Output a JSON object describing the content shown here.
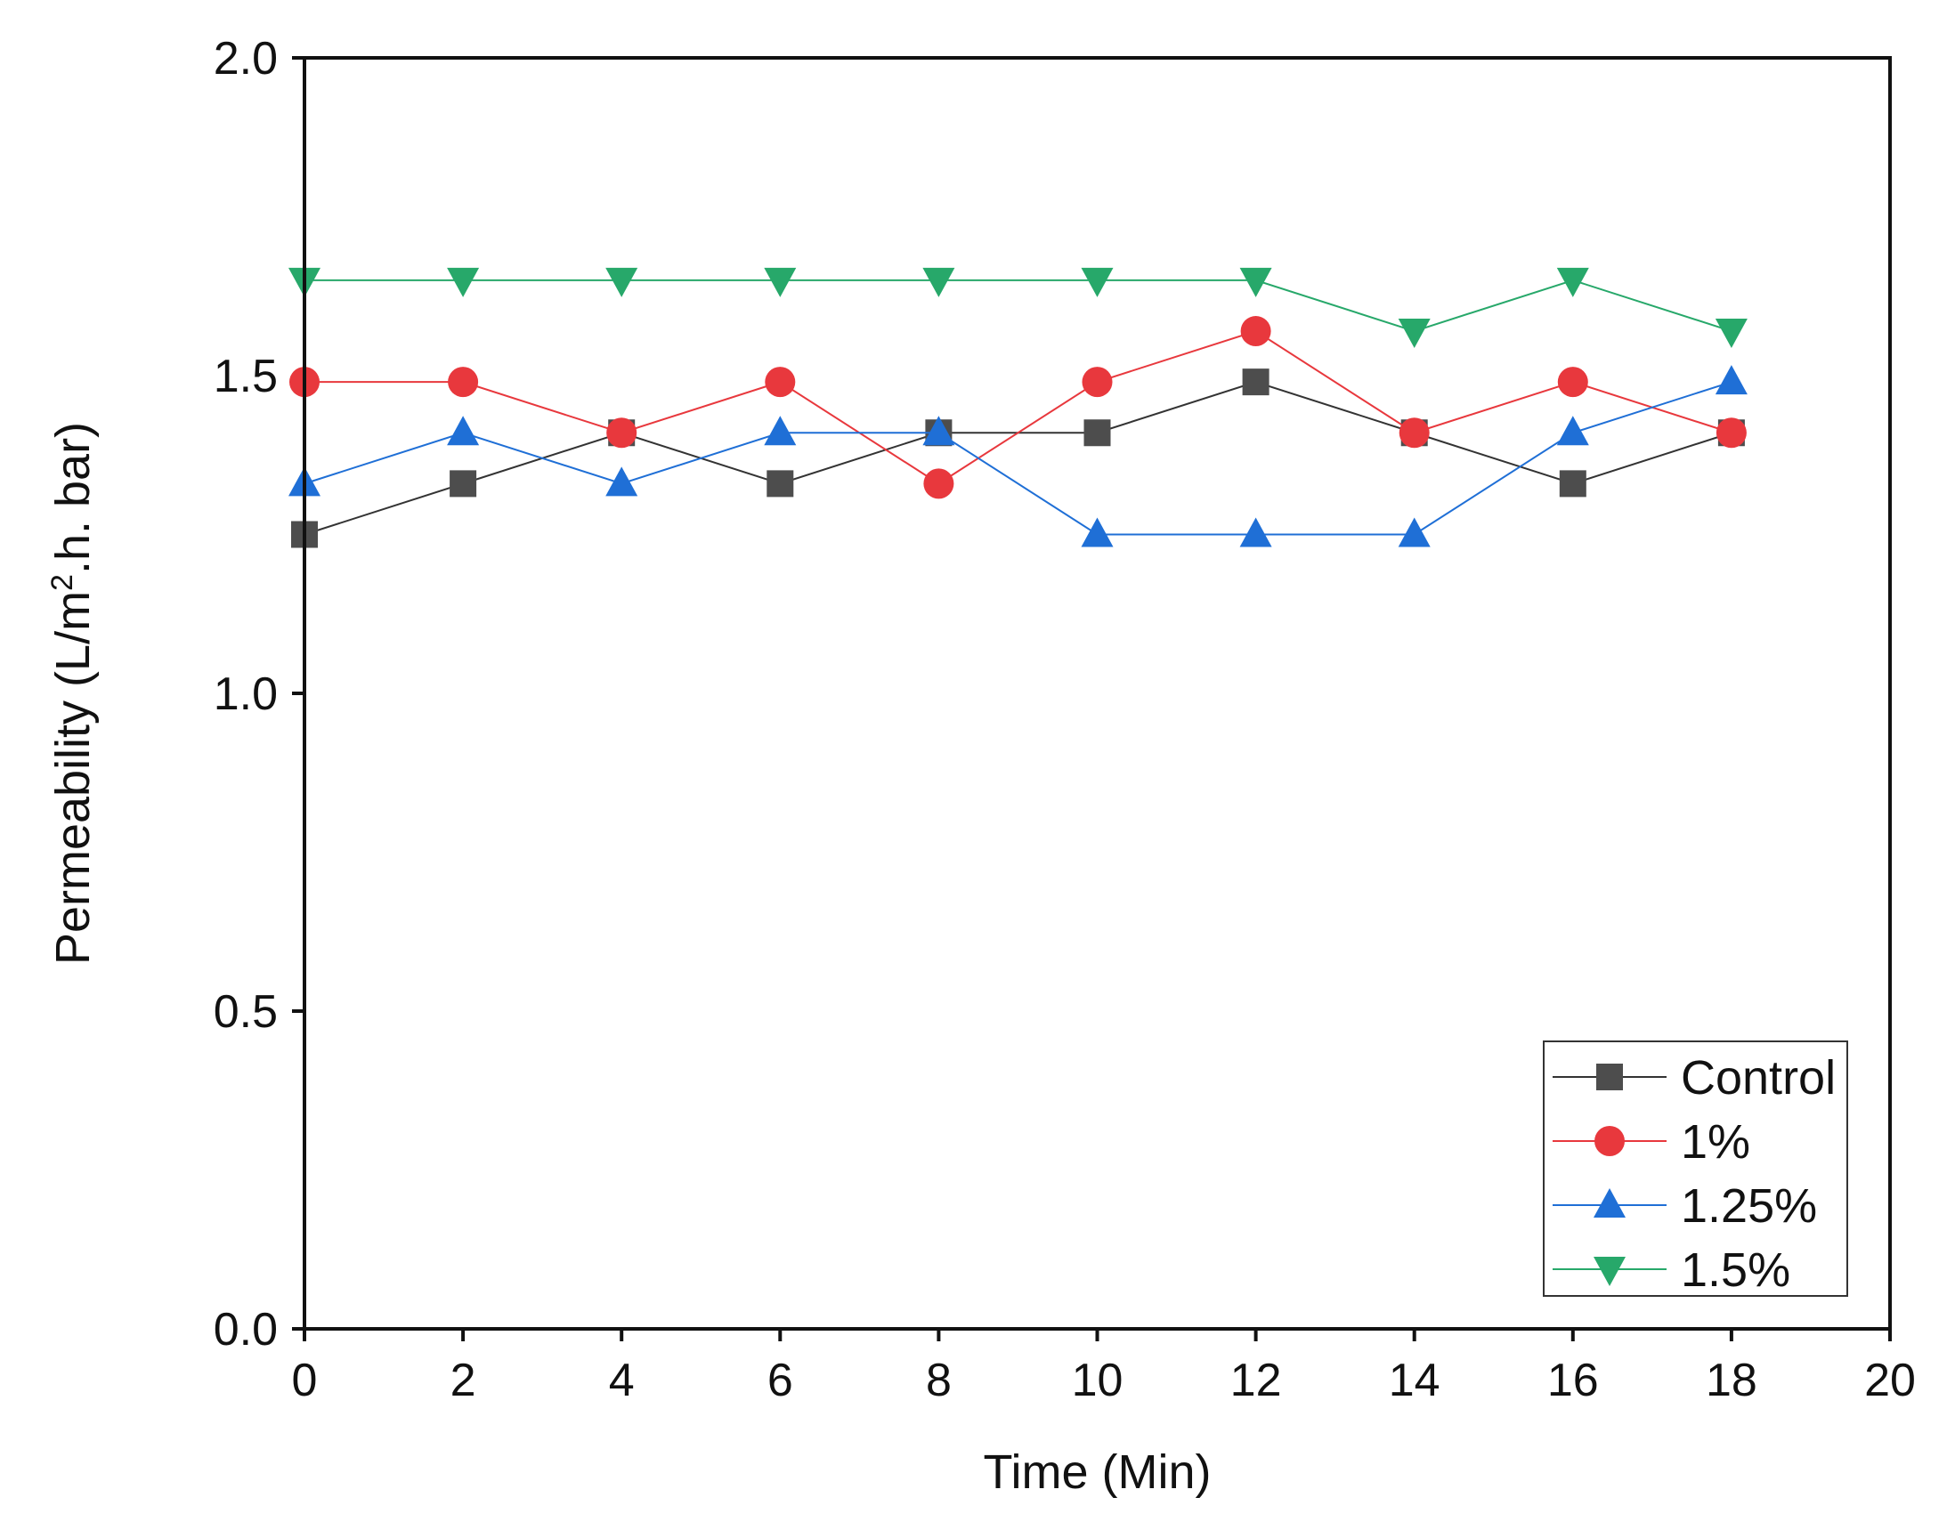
{
  "chart_data": {
    "type": "line",
    "title": "",
    "xlabel": "Time (Min)",
    "ylabel_main": "Permeability (L/m",
    "ylabel_sup": "2",
    "ylabel_end": ".h. bar)",
    "xlim": [
      0,
      20
    ],
    "ylim": [
      0,
      2.0
    ],
    "xticks": [
      0,
      2,
      4,
      6,
      8,
      10,
      12,
      14,
      16,
      18,
      20
    ],
    "xtick_labels": [
      "0",
      "2",
      "4",
      "6",
      "8",
      "10",
      "12",
      "14",
      "16",
      "18",
      "20"
    ],
    "yticks": [
      0,
      0.5,
      1.0,
      1.5,
      2.0
    ],
    "ytick_labels": [
      "0.0",
      "0.5",
      "1.0",
      "1.5",
      "2.0"
    ],
    "grid": false,
    "legend_position": "bottom-right",
    "x": [
      0,
      2,
      4,
      6,
      8,
      10,
      12,
      14,
      16,
      18
    ],
    "series": [
      {
        "name": "Control",
        "marker": "square",
        "color": "#4d4d4d",
        "line_color": "#333333",
        "values": [
          1.25,
          1.33,
          1.41,
          1.33,
          1.41,
          1.41,
          1.49,
          1.41,
          1.33,
          1.41
        ]
      },
      {
        "name": "1%",
        "marker": "circle",
        "color": "#e8383d",
        "line_color": "#e8383d",
        "values": [
          1.49,
          1.49,
          1.41,
          1.49,
          1.33,
          1.49,
          1.57,
          1.41,
          1.49,
          1.41
        ]
      },
      {
        "name": "1.25%",
        "marker": "triangle-up",
        "color": "#1f6fd6",
        "line_color": "#1f6fd6",
        "values": [
          1.33,
          1.41,
          1.33,
          1.41,
          1.41,
          1.25,
          1.25,
          1.25,
          1.41,
          1.49
        ]
      },
      {
        "name": "1.5%",
        "marker": "triangle-down",
        "color": "#27a86a",
        "line_color": "#27a86a",
        "values": [
          1.65,
          1.65,
          1.65,
          1.65,
          1.65,
          1.65,
          1.65,
          1.57,
          1.65,
          1.57
        ]
      }
    ]
  }
}
